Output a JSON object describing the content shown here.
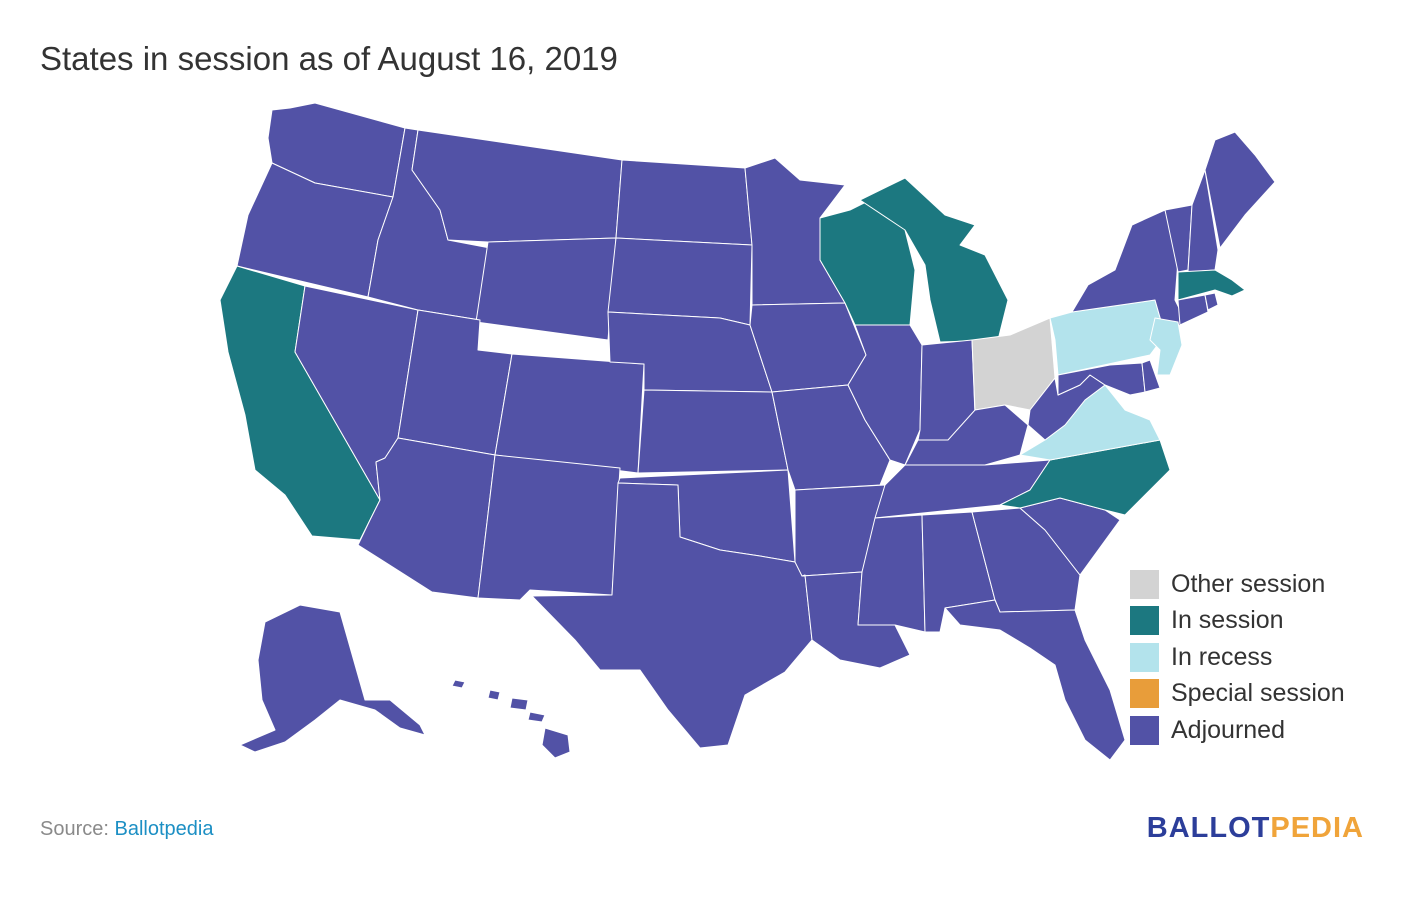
{
  "title": "States in session as of August 16, 2019",
  "colors": {
    "other_session": "#d3d3d3",
    "in_session": "#1c7880",
    "in_recess": "#b3e3ec",
    "special_session": "#e89d3a",
    "adjourned": "#5252a6"
  },
  "legend": [
    {
      "label": "Other session",
      "color": "#d3d3d3"
    },
    {
      "label": "In session",
      "color": "#1c7880"
    },
    {
      "label": "In recess",
      "color": "#b3e3ec"
    },
    {
      "label": "Special session",
      "color": "#e89d3a"
    },
    {
      "label": "Adjourned",
      "color": "#5252a6"
    }
  ],
  "map_data": {
    "in_session": [
      "California",
      "Wisconsin",
      "Michigan",
      "Massachusetts",
      "North Carolina"
    ],
    "in_recess": [
      "Pennsylvania",
      "New Jersey",
      "Virginia"
    ],
    "other_session": [
      "Ohio"
    ],
    "special_session": [],
    "adjourned": [
      "Alabama",
      "Alaska",
      "Arizona",
      "Arkansas",
      "Colorado",
      "Connecticut",
      "Delaware",
      "Florida",
      "Georgia",
      "Hawaii",
      "Idaho",
      "Illinois",
      "Indiana",
      "Iowa",
      "Kansas",
      "Kentucky",
      "Louisiana",
      "Maine",
      "Maryland",
      "Minnesota",
      "Mississippi",
      "Missouri",
      "Montana",
      "Nebraska",
      "Nevada",
      "New Hampshire",
      "New Mexico",
      "New York",
      "North Dakota",
      "Oklahoma",
      "Oregon",
      "Rhode Island",
      "South Carolina",
      "South Dakota",
      "Tennessee",
      "Texas",
      "Utah",
      "Vermont",
      "Washington",
      "West Virginia",
      "Wyoming"
    ]
  },
  "source": {
    "prefix": "Source: ",
    "link_text": "Ballotpedia"
  },
  "brand": {
    "part1": "BALLOT",
    "part2": "PEDIA"
  }
}
